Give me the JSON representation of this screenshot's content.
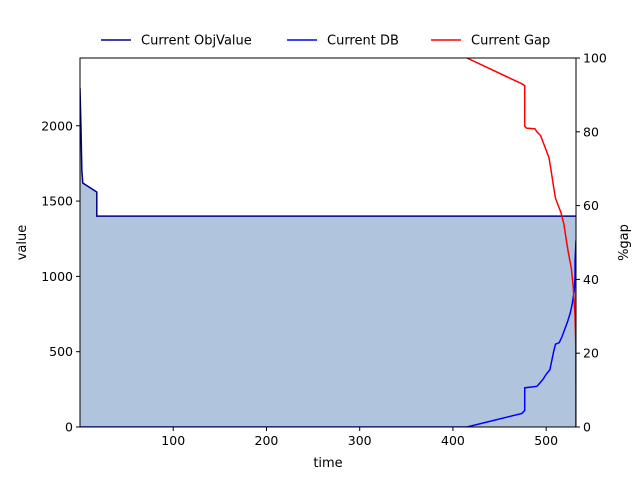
{
  "chart_data": {
    "type": "line",
    "xlabel": "time",
    "ylabel": "value",
    "y2label": "%gap",
    "xlim": [
      0,
      532
    ],
    "ylim": [
      0,
      2450
    ],
    "y2lim": [
      0,
      100
    ],
    "x_ticks": [
      100,
      200,
      300,
      400,
      500
    ],
    "y_ticks": [
      0,
      500,
      1000,
      1500,
      2000
    ],
    "y2_ticks": [
      0,
      20,
      40,
      60,
      80,
      100
    ],
    "legend_position": "top",
    "grid": false,
    "series": [
      {
        "name": "Current ObjValue",
        "axis": "left",
        "color": "#00008b",
        "points": [
          [
            0,
            2250
          ],
          [
            1,
            2000
          ],
          [
            2,
            1700
          ],
          [
            3,
            1620
          ],
          [
            18,
            1560
          ],
          [
            18,
            1400
          ],
          [
            532,
            1400
          ]
        ]
      },
      {
        "name": "Current DB",
        "axis": "left",
        "color": "#0000ff",
        "points": [
          [
            0,
            0
          ],
          [
            415,
            0
          ],
          [
            474,
            90
          ],
          [
            477,
            110
          ],
          [
            477,
            260
          ],
          [
            490,
            270
          ],
          [
            493,
            290
          ],
          [
            497,
            320
          ],
          [
            500,
            350
          ],
          [
            504,
            380
          ],
          [
            506,
            440
          ],
          [
            508,
            500
          ],
          [
            510,
            550
          ],
          [
            514,
            560
          ],
          [
            517,
            600
          ],
          [
            520,
            650
          ],
          [
            523,
            700
          ],
          [
            526,
            760
          ],
          [
            528,
            820
          ],
          [
            530,
            900
          ],
          [
            531,
            1000
          ],
          [
            531,
            1100
          ],
          [
            532,
            1240
          ],
          [
            532,
            0
          ]
        ]
      },
      {
        "name": "Current Gap",
        "axis": "right",
        "color": "#ff0000",
        "points": [
          [
            415,
            100
          ],
          [
            474,
            93
          ],
          [
            477,
            92.5
          ],
          [
            477,
            81.5
          ],
          [
            479,
            81
          ],
          [
            488,
            80.8
          ],
          [
            490,
            80
          ],
          [
            494,
            79
          ],
          [
            497,
            77
          ],
          [
            500,
            75
          ],
          [
            503,
            73
          ],
          [
            505,
            70
          ],
          [
            508,
            65
          ],
          [
            510,
            62
          ],
          [
            513,
            60
          ],
          [
            516,
            58
          ],
          [
            519,
            55
          ],
          [
            522,
            50
          ],
          [
            524,
            47
          ],
          [
            527,
            43
          ],
          [
            529,
            38
          ],
          [
            531,
            30
          ],
          [
            532,
            20
          ],
          [
            532,
            12
          ]
        ]
      }
    ],
    "fill": {
      "between": "Current ObjValue and axis",
      "color": "#b0c4de"
    }
  }
}
